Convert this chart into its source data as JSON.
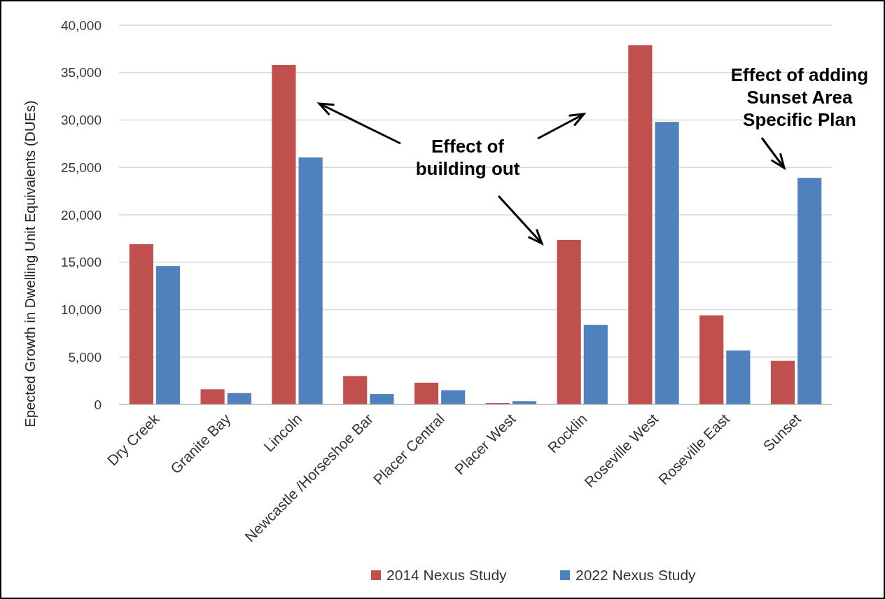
{
  "chart_data": {
    "type": "bar",
    "ylabel": "Epected Growth in Dwelling Unit Equivalents (DUEs)",
    "categories": [
      "Dry Creek",
      "Granite Bay",
      "Lincoln",
      "Newcastle /Horseshoe Bar",
      "Placer Central",
      "Placer West",
      "Rocklin",
      "Roseville West",
      "Roseville East",
      "Sunset"
    ],
    "series": [
      {
        "name": "2014 Nexus Study",
        "color": "#c0504d",
        "values": [
          16900,
          1600,
          35800,
          3000,
          2300,
          150,
          17350,
          37900,
          9400,
          4600
        ]
      },
      {
        "name": "2022 Nexus Study",
        "color": "#4f81bd",
        "values": [
          14600,
          1200,
          26050,
          1100,
          1500,
          350,
          8400,
          29800,
          5700,
          23900
        ]
      }
    ],
    "ylim": [
      0,
      40000
    ],
    "yticks": [
      {
        "value": 0,
        "label": "0"
      },
      {
        "value": 5000,
        "label": "5,000"
      },
      {
        "value": 10000,
        "label": "10,000"
      },
      {
        "value": 15000,
        "label": "15,000"
      },
      {
        "value": 20000,
        "label": "20,000"
      },
      {
        "value": 25000,
        "label": "25,000"
      },
      {
        "value": 30000,
        "label": "30,000"
      },
      {
        "value": 35000,
        "label": "35,000"
      },
      {
        "value": 40000,
        "label": "40,000"
      }
    ],
    "grid": "y",
    "legend": "bottom",
    "annotations": [
      "Effect of\nbuilding out",
      "Effect of adding\nSunset Area\nSpecific Plan"
    ]
  }
}
